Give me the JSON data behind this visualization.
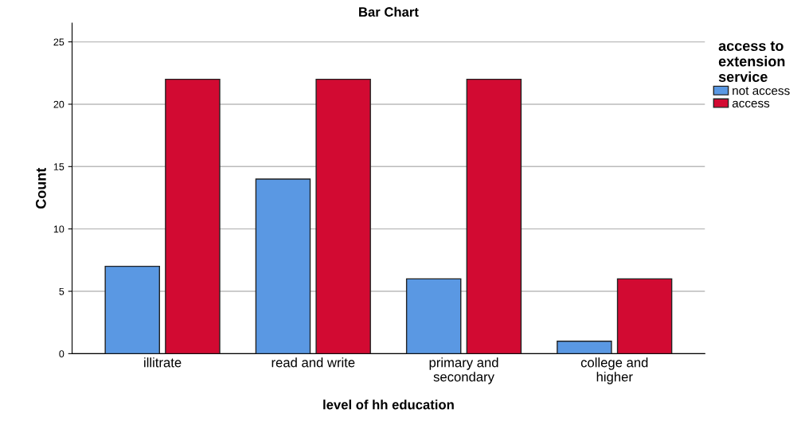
{
  "chart_data": {
    "type": "bar",
    "title": "Bar Chart",
    "xlabel": "level of hh education",
    "ylabel": "Count",
    "legend_title": "access to\nextension\nservice",
    "categories": [
      "illitrate",
      "read and write",
      "primary and\nsecondary",
      "college and\nhigher"
    ],
    "series": [
      {
        "name": "not access",
        "color": "#5a98e3",
        "values": [
          7,
          14,
          6,
          1
        ]
      },
      {
        "name": "access",
        "color": "#d20a32",
        "values": [
          22,
          22,
          22,
          6
        ]
      }
    ],
    "ylim": [
      0,
      26.5
    ],
    "yticks": [
      0,
      5,
      10,
      15,
      20,
      25
    ],
    "grid": "y",
    "legend": "top right"
  }
}
